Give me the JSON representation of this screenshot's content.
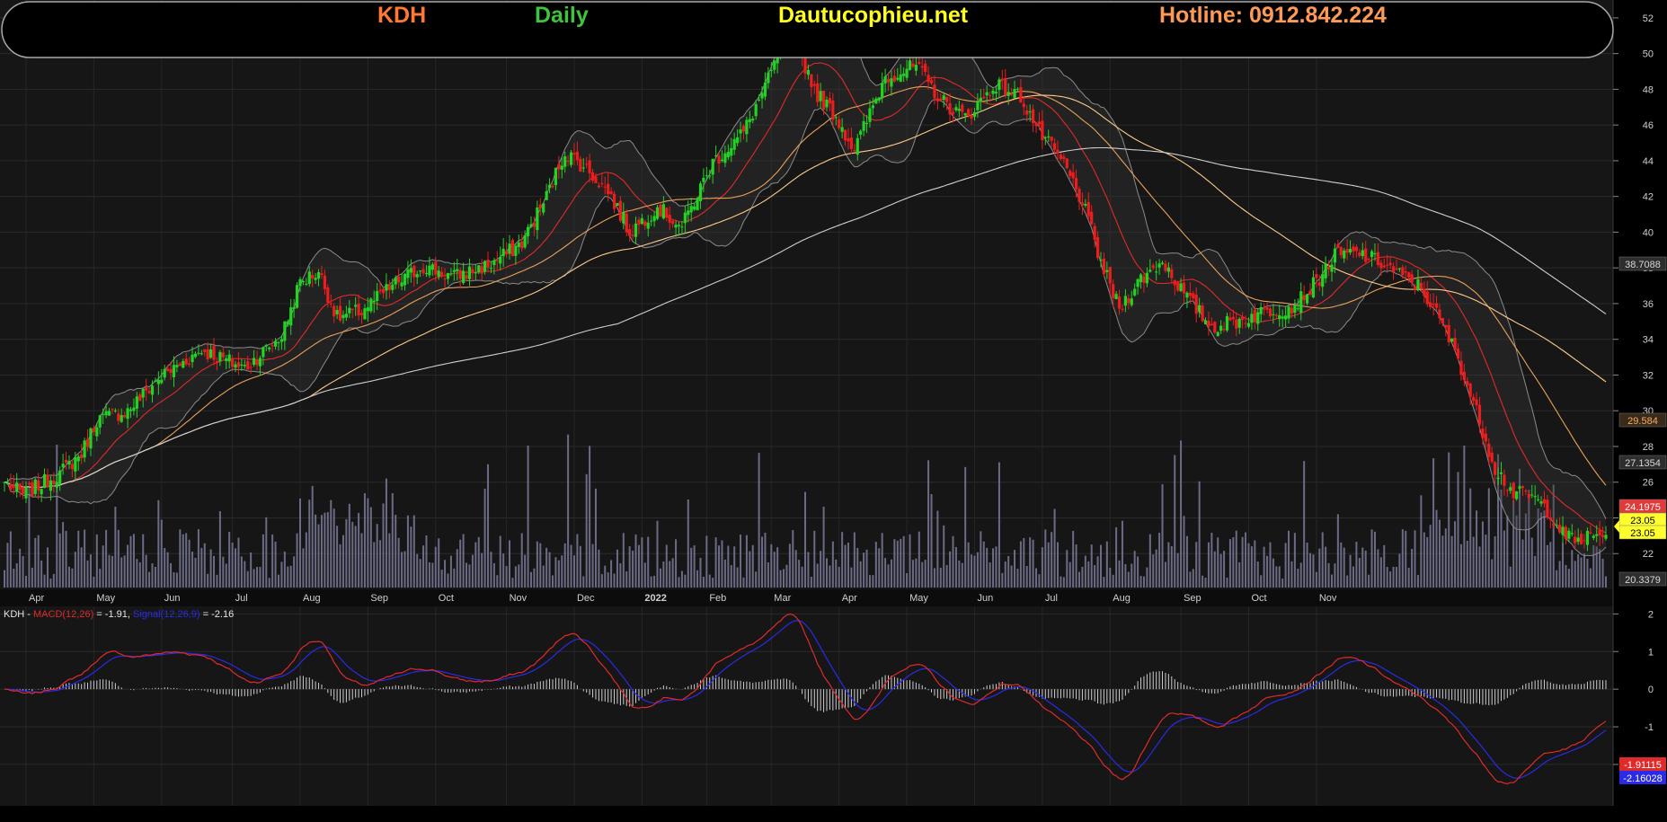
{
  "header": {
    "ticker": "KDH",
    "period": "Daily",
    "site": "Dautucophieu.net",
    "hotline": "Hotline: 0912.842.224",
    "colors": {
      "ticker": "#ff7a2e",
      "period": "#3ec53e",
      "site": "#ffff1e",
      "hotline": "#ff9a55"
    }
  },
  "chart_data": [
    {
      "type": "candlestick",
      "ticker": "KDH",
      "ylim": [
        20,
        53
      ],
      "y_ticks": [
        22,
        24,
        26,
        28,
        30,
        32,
        34,
        36,
        38,
        40,
        42,
        44,
        46,
        48,
        50,
        52
      ],
      "x_ticks": [
        "Apr",
        "May",
        "Jun",
        "Jul",
        "Aug",
        "Sep",
        "Oct",
        "Nov",
        "Dec",
        "2022",
        "Feb",
        "Mar",
        "Apr",
        "May",
        "Jun",
        "Jul",
        "Aug",
        "Sep",
        "Oct",
        "Nov"
      ],
      "close_anchors": [
        [
          0,
          26.0
        ],
        [
          6,
          25.3
        ],
        [
          18,
          26.5
        ],
        [
          25,
          27.6
        ],
        [
          30,
          29.5
        ],
        [
          40,
          30.0
        ],
        [
          50,
          31.8
        ],
        [
          64,
          33.4
        ],
        [
          78,
          32.4
        ],
        [
          90,
          34.2
        ],
        [
          96,
          37.2
        ],
        [
          102,
          37.8
        ],
        [
          108,
          35.2
        ],
        [
          116,
          35.6
        ],
        [
          126,
          37.0
        ],
        [
          136,
          38.1
        ],
        [
          146,
          37.5
        ],
        [
          158,
          38.2
        ],
        [
          168,
          39.4
        ],
        [
          176,
          42.0
        ],
        [
          182,
          44.5
        ],
        [
          188,
          43.7
        ],
        [
          196,
          42.3
        ],
        [
          203,
          40.0
        ],
        [
          212,
          41.4
        ],
        [
          220,
          40.3
        ],
        [
          230,
          43.9
        ],
        [
          240,
          45.6
        ],
        [
          248,
          48.5
        ],
        [
          254,
          51.3
        ],
        [
          258,
          50.1
        ],
        [
          264,
          47.7
        ],
        [
          270,
          46.5
        ],
        [
          276,
          44.6
        ],
        [
          286,
          48.7
        ],
        [
          296,
          49.3
        ],
        [
          304,
          47.4
        ],
        [
          312,
          46.4
        ],
        [
          322,
          48.3
        ],
        [
          330,
          47.6
        ],
        [
          336,
          45.6
        ],
        [
          344,
          43.8
        ],
        [
          350,
          41.7
        ],
        [
          356,
          38.3
        ],
        [
          362,
          35.7
        ],
        [
          368,
          37.2
        ],
        [
          376,
          38.4
        ],
        [
          384,
          36.3
        ],
        [
          392,
          34.7
        ],
        [
          400,
          35.0
        ],
        [
          410,
          35.6
        ],
        [
          418,
          35.8
        ],
        [
          426,
          37.2
        ],
        [
          432,
          38.7
        ],
        [
          440,
          38.8
        ],
        [
          448,
          38.2
        ],
        [
          454,
          37.5
        ],
        [
          460,
          36.9
        ],
        [
          466,
          35.1
        ],
        [
          472,
          33.0
        ],
        [
          476,
          30.9
        ],
        [
          480,
          28.9
        ],
        [
          484,
          26.8
        ],
        [
          490,
          25.4
        ],
        [
          496,
          25.2
        ],
        [
          502,
          24.3
        ],
        [
          506,
          23.1
        ],
        [
          510,
          22.7
        ],
        [
          514,
          22.9
        ],
        [
          520,
          23.05
        ]
      ],
      "price_labels": [
        {
          "value": "38.7088",
          "color": "#d6d6d6"
        },
        {
          "value": "29.584",
          "color": "#f5ad62"
        },
        {
          "value": "27.1354",
          "color": "#d6d6d6"
        },
        {
          "value": "24.1975",
          "color": "#e23a3a"
        },
        {
          "value": "23.05",
          "color": "#ffff2e"
        },
        {
          "value": "23.05",
          "color": "#ffff2e"
        },
        {
          "value": "20.3379",
          "color": "#d6d6d6"
        }
      ],
      "volume_color": "#7a7a9a",
      "overlays": [
        {
          "kind": "moving-average",
          "color": "#e02a2a"
        },
        {
          "kind": "moving-average",
          "color": "#e8a15a"
        },
        {
          "kind": "moving-average",
          "color": "#ffc98a"
        },
        {
          "kind": "moving-average",
          "color": "#cfcfcf"
        },
        {
          "kind": "bollinger-bands",
          "color": "#8a8a8a"
        }
      ]
    },
    {
      "type": "line",
      "title_parts": [
        {
          "text": "KDH - ",
          "color": "#e6e6e6"
        },
        {
          "text": "MACD(12,26)",
          "color": "#e02a2a"
        },
        {
          "text": " = -1.91, ",
          "color": "#e6e6e6"
        },
        {
          "text": "Signal(12,26,9)",
          "color": "#2a2ae8"
        },
        {
          "text": " = -2.16",
          "color": "#e6e6e6"
        }
      ],
      "ylim": [
        -3.1,
        2.2
      ],
      "y_ticks": [
        -2,
        -1,
        0,
        1,
        2
      ],
      "series": [
        {
          "name": "MACD(12,26)",
          "color": "#e02a2a",
          "last": "-1.91115"
        },
        {
          "name": "Signal(12,26,9)",
          "color": "#2a2ae8",
          "last": "-2.16028"
        }
      ],
      "histogram_color": "#cfcfcf"
    }
  ]
}
